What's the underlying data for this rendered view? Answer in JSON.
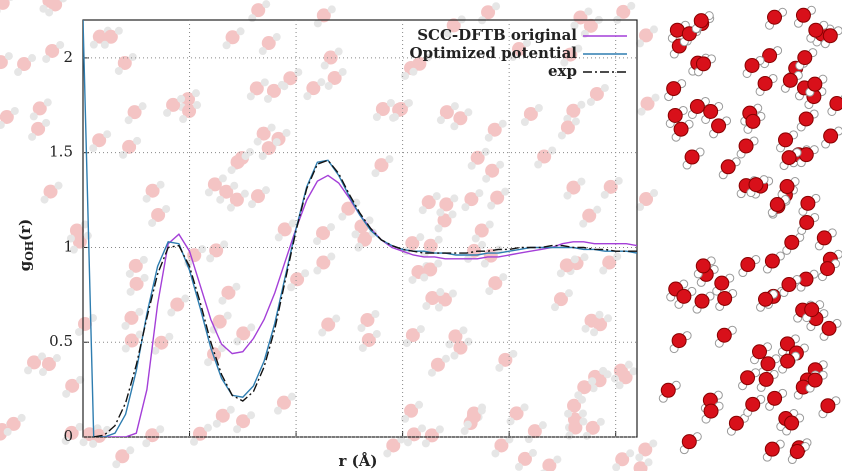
{
  "chart_data": {
    "type": "line",
    "xlabel": "r (Å)",
    "ylabel": {
      "main": "g",
      "sub": "OH",
      "tail": "(r)"
    },
    "xlim": [
      1.0,
      6.2
    ],
    "xticks": [
      2,
      3,
      4,
      5,
      6
    ],
    "ylim": [
      0,
      2.2
    ],
    "yticks": [
      0,
      0.5,
      1,
      1.5,
      2
    ],
    "grid": true,
    "legend": "upper right",
    "x": [
      1.0,
      1.1,
      1.2,
      1.3,
      1.4,
      1.5,
      1.6,
      1.7,
      1.8,
      1.9,
      2.0,
      2.1,
      2.2,
      2.3,
      2.4,
      2.5,
      2.6,
      2.7,
      2.8,
      2.9,
      3.0,
      3.1,
      3.2,
      3.3,
      3.4,
      3.5,
      3.6,
      3.7,
      3.8,
      3.9,
      4.0,
      4.1,
      4.2,
      4.3,
      4.4,
      4.5,
      4.6,
      4.7,
      4.8,
      4.9,
      5.0,
      5.1,
      5.2,
      5.3,
      5.4,
      5.5,
      5.6,
      5.7,
      5.8,
      5.9,
      6.0,
      6.1,
      6.2
    ],
    "series": [
      {
        "name": "SCC-DFTB original",
        "color": "#a43fd8",
        "dash": "solid",
        "values": [
          null,
          0,
          0,
          0,
          0,
          0.02,
          0.25,
          0.7,
          1.02,
          1.07,
          0.98,
          0.8,
          0.62,
          0.49,
          0.44,
          0.45,
          0.52,
          0.62,
          0.76,
          0.93,
          1.1,
          1.25,
          1.35,
          1.38,
          1.34,
          1.26,
          1.17,
          1.1,
          1.04,
          1.0,
          0.98,
          0.96,
          0.95,
          0.95,
          0.94,
          0.94,
          0.94,
          0.94,
          0.95,
          0.95,
          0.96,
          0.97,
          0.98,
          0.99,
          1.0,
          1.02,
          1.03,
          1.03,
          1.02,
          1.02,
          1.02,
          1.02,
          1.01
        ]
      },
      {
        "name": "Optimized potential",
        "color": "#2e7db0",
        "dash": "solid",
        "values": [
          2.2,
          0,
          0,
          0.02,
          0.12,
          0.35,
          0.65,
          0.9,
          1.03,
          1.02,
          0.88,
          0.68,
          0.47,
          0.31,
          0.22,
          0.21,
          0.27,
          0.4,
          0.6,
          0.85,
          1.1,
          1.32,
          1.45,
          1.46,
          1.38,
          1.27,
          1.17,
          1.09,
          1.04,
          1.01,
          0.99,
          0.98,
          0.98,
          0.97,
          0.97,
          0.96,
          0.96,
          0.96,
          0.97,
          0.97,
          0.98,
          0.99,
          1.0,
          1.0,
          1.0,
          1.0,
          1.0,
          0.99,
          0.99,
          0.98,
          0.98,
          0.98,
          0.97
        ]
      },
      {
        "name": "exp",
        "color": "#111111",
        "dash": "dashdot",
        "values": [
          null,
          0,
          0.01,
          0.06,
          0.18,
          0.38,
          0.63,
          0.86,
          1.0,
          1.01,
          0.9,
          0.71,
          0.5,
          0.33,
          0.22,
          0.19,
          0.24,
          0.37,
          0.57,
          0.83,
          1.09,
          1.31,
          1.44,
          1.46,
          1.39,
          1.28,
          1.18,
          1.1,
          1.04,
          1.01,
          0.99,
          0.98,
          0.97,
          0.97,
          0.97,
          0.97,
          0.97,
          0.98,
          0.98,
          0.99,
          0.99,
          1.0,
          1.0,
          1.0,
          1.01,
          1.01,
          1.0,
          1.0,
          0.99,
          0.99,
          0.98,
          0.98,
          0.98
        ]
      }
    ]
  }
}
